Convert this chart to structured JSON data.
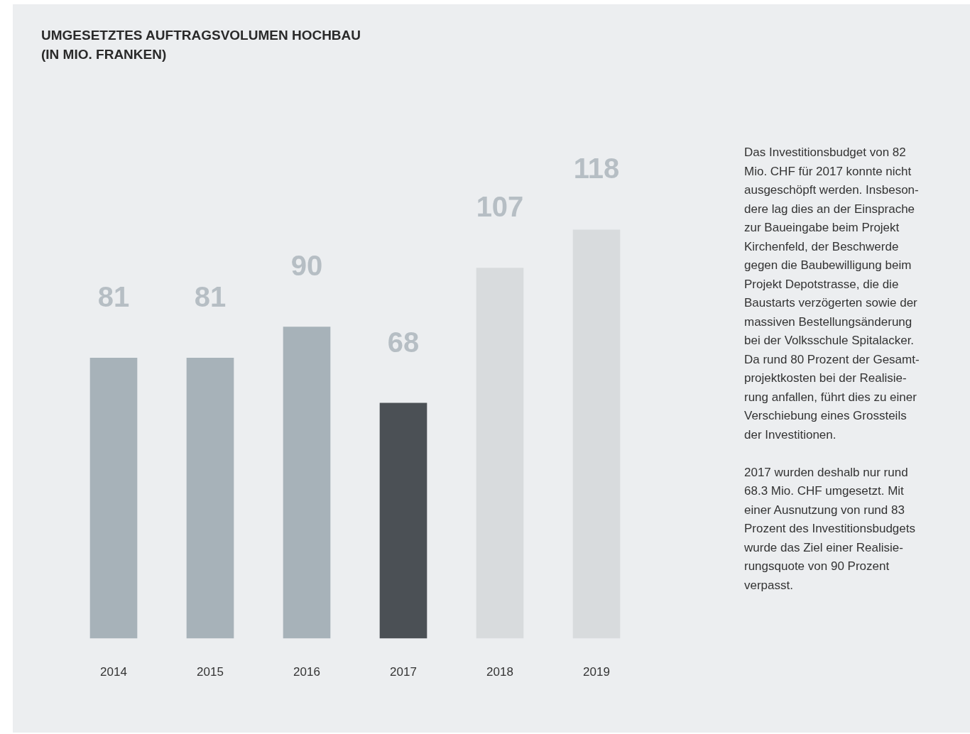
{
  "chart_data": {
    "type": "bar",
    "title": "UMGESETZTES AUFTRAGSVOLUMEN HOCHBAU\n(IN MIO. FRANKEN)",
    "categories": [
      "2014",
      "2015",
      "2016",
      "2017",
      "2018",
      "2019"
    ],
    "values": [
      81,
      81,
      90,
      68,
      107,
      118
    ],
    "colors": [
      "#a7b2b9",
      "#a7b2b9",
      "#a7b2b9",
      "#4b5055",
      "#d8dbdd",
      "#d8dbdd"
    ],
    "data_labels": true,
    "grid": false,
    "legend": false,
    "tick_labels": "x",
    "annotations": [
      "Das Investitionsbudget von 82\nMio. CHF für 2017 konnte nicht\nausgeschöpft werden. Insbeson-\ndere lag dies an der Einsprache\nzur Baueingabe beim Projekt\nKirchenfeld, der Beschwerde\ngegen die Baubewilligung beim\nProjekt Depotstrasse, die die\nBaustarts verzögerten sowie der\nmassiven Bestellungsänderung\nbei der Volksschule Spitalacker.\nDa rund 80 Prozent der Gesamt-\nprojektkosten bei der Realisie-\nrung anfallen, führt dies zu einer\nVerschiebung eines Grossteils\nder Investitionen.",
      "2017 wurden deshalb nur rund\n68.3 Mio. CHF umgesetzt. Mit\neiner Ausnutzung von rund 83\nProzent des Investitionsbudgets\nwurde das Ziel einer Realisie-\nrungsquote von 90 Prozent\nverpasst."
    ]
  }
}
